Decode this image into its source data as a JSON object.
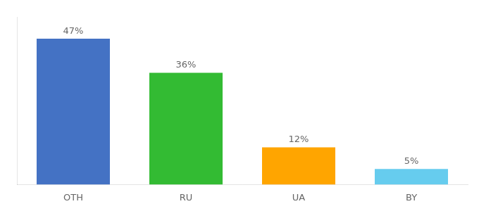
{
  "chart_data": {
    "type": "bar",
    "categories": [
      "OTH",
      "RU",
      "UA",
      "BY"
    ],
    "values": [
      47,
      36,
      12,
      5
    ],
    "value_labels": [
      "47%",
      "36%",
      "12%",
      "5%"
    ],
    "data_labels": true,
    "colors": [
      "#4472c4",
      "#33bb33",
      "#FFA500",
      "#66ccee"
    ],
    "ylim": [
      0,
      54
    ],
    "grid": false,
    "tick_labels": "x"
  }
}
